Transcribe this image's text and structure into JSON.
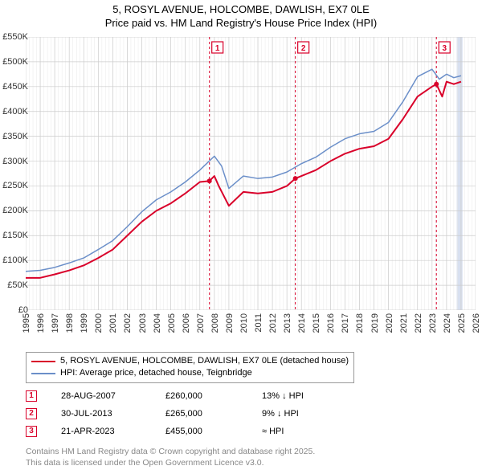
{
  "title_line1": "5, ROSYL AVENUE, HOLCOMBE, DAWLISH, EX7 0LE",
  "title_line2": "Price paid vs. HM Land Registry's House Price Index (HPI)",
  "chart": {
    "type": "line",
    "x_min": 1995,
    "x_max": 2026,
    "y_min": 0,
    "y_max": 550000,
    "y_ticks": [
      0,
      50000,
      100000,
      150000,
      200000,
      250000,
      300000,
      350000,
      400000,
      450000,
      500000,
      550000
    ],
    "y_tick_labels": [
      "£0",
      "£50K",
      "£100K",
      "£150K",
      "£200K",
      "£250K",
      "£300K",
      "£350K",
      "£400K",
      "£450K",
      "£500K",
      "£550K"
    ],
    "x_ticks": [
      1995,
      1996,
      1997,
      1998,
      1999,
      2000,
      2001,
      2002,
      2003,
      2004,
      2005,
      2006,
      2007,
      2008,
      2009,
      2010,
      2011,
      2012,
      2013,
      2014,
      2015,
      2016,
      2017,
      2018,
      2019,
      2020,
      2021,
      2022,
      2023,
      2024,
      2025,
      2026
    ],
    "grid_color": "#cccccc",
    "grid_fine_color": "#e8e8e8",
    "background_color": "#ffffff",
    "series": [
      {
        "name": "price_paid",
        "label": "5, ROSYL AVENUE, HOLCOMBE, DAWLISH, EX7 0LE (detached house)",
        "color": "#d9012a",
        "width": 2,
        "data": [
          [
            1995,
            65000
          ],
          [
            1996,
            65000
          ],
          [
            1997,
            72000
          ],
          [
            1998,
            80000
          ],
          [
            1999,
            90000
          ],
          [
            2000,
            105000
          ],
          [
            2001,
            122000
          ],
          [
            2002,
            150000
          ],
          [
            2003,
            178000
          ],
          [
            2004,
            200000
          ],
          [
            2005,
            215000
          ],
          [
            2006,
            235000
          ],
          [
            2007,
            258000
          ],
          [
            2007.66,
            260000
          ],
          [
            2008,
            270000
          ],
          [
            2008.3,
            250000
          ],
          [
            2009,
            210000
          ],
          [
            2010,
            238000
          ],
          [
            2011,
            235000
          ],
          [
            2012,
            238000
          ],
          [
            2013,
            250000
          ],
          [
            2013.58,
            265000
          ],
          [
            2014,
            270000
          ],
          [
            2015,
            282000
          ],
          [
            2016,
            300000
          ],
          [
            2017,
            315000
          ],
          [
            2018,
            325000
          ],
          [
            2019,
            330000
          ],
          [
            2020,
            345000
          ],
          [
            2021,
            385000
          ],
          [
            2022,
            430000
          ],
          [
            2023,
            450000
          ],
          [
            2023.3,
            455000
          ],
          [
            2023.7,
            430000
          ],
          [
            2024,
            460000
          ],
          [
            2024.5,
            455000
          ],
          [
            2025,
            460000
          ]
        ]
      },
      {
        "name": "hpi",
        "label": "HPI: Average price, detached house, Teignbridge",
        "color": "#6b8fc9",
        "width": 1.5,
        "data": [
          [
            1995,
            78000
          ],
          [
            1996,
            80000
          ],
          [
            1997,
            86000
          ],
          [
            1998,
            95000
          ],
          [
            1999,
            105000
          ],
          [
            2000,
            122000
          ],
          [
            2001,
            140000
          ],
          [
            2002,
            168000
          ],
          [
            2003,
            198000
          ],
          [
            2004,
            222000
          ],
          [
            2005,
            238000
          ],
          [
            2006,
            258000
          ],
          [
            2007,
            282000
          ],
          [
            2008,
            310000
          ],
          [
            2008.5,
            290000
          ],
          [
            2009,
            245000
          ],
          [
            2010,
            270000
          ],
          [
            2011,
            265000
          ],
          [
            2012,
            268000
          ],
          [
            2013,
            278000
          ],
          [
            2014,
            295000
          ],
          [
            2015,
            308000
          ],
          [
            2016,
            328000
          ],
          [
            2017,
            345000
          ],
          [
            2018,
            355000
          ],
          [
            2019,
            360000
          ],
          [
            2020,
            378000
          ],
          [
            2021,
            420000
          ],
          [
            2022,
            470000
          ],
          [
            2023,
            485000
          ],
          [
            2023.5,
            465000
          ],
          [
            2024,
            475000
          ],
          [
            2024.5,
            468000
          ],
          [
            2025,
            472000
          ]
        ]
      }
    ],
    "markers": [
      {
        "n": "1",
        "year": 2007.66,
        "price": 260000
      },
      {
        "n": "2",
        "year": 2013.58,
        "price": 265000
      },
      {
        "n": "3",
        "year": 2023.3,
        "price": 455000
      }
    ],
    "highlight_band": {
      "from": 2024.7,
      "to": 2025.1,
      "color": "#d8e0f0"
    }
  },
  "legend": {
    "rows": [
      {
        "color": "#d9012a",
        "width": 2,
        "label": "5, ROSYL AVENUE, HOLCOMBE, DAWLISH, EX7 0LE (detached house)"
      },
      {
        "color": "#6b8fc9",
        "width": 1.5,
        "label": "HPI: Average price, detached house, Teignbridge"
      }
    ]
  },
  "sales": [
    {
      "n": "1",
      "date": "28-AUG-2007",
      "price": "£260,000",
      "delta": "13% ↓ HPI"
    },
    {
      "n": "2",
      "date": "30-JUL-2013",
      "price": "£265,000",
      "delta": "9% ↓ HPI"
    },
    {
      "n": "3",
      "date": "21-APR-2023",
      "price": "£455,000",
      "delta": "≈ HPI"
    }
  ],
  "attribution_line1": "Contains HM Land Registry data © Crown copyright and database right 2025.",
  "attribution_line2": "This data is licensed under the Open Government Licence v3.0."
}
